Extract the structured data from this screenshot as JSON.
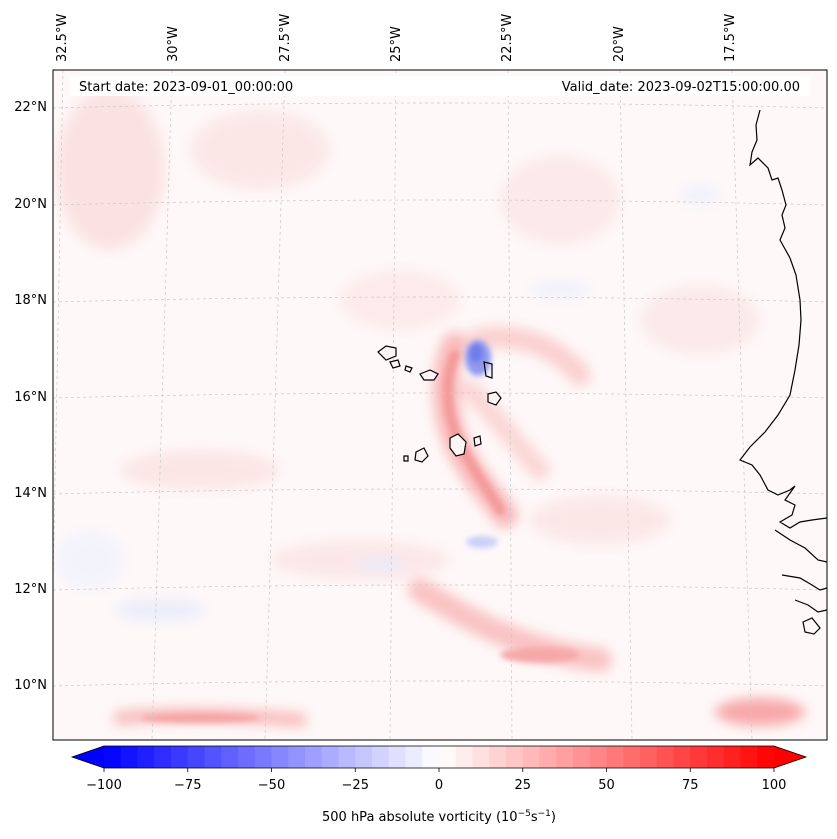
{
  "map": {
    "start_date_label": "Start date: 2023-09-01_00:00:00",
    "valid_date_label": "Valid_date: 2023-09-02T15:00:00.00",
    "lon_labels": [
      "32.5°W",
      "30°W",
      "27.5°W",
      "25°W",
      "22.5°W",
      "20°W",
      "17.5°W"
    ],
    "lat_labels": [
      "22°N",
      "20°N",
      "18°N",
      "16°N",
      "14°N",
      "12°N",
      "10°N"
    ],
    "variable": "500 hPa absolute vorticity",
    "region": "Cape Verde Islands and West African coast"
  },
  "colorbar": {
    "ticks": [
      "−100",
      "−75",
      "−50",
      "−25",
      "0",
      "25",
      "50",
      "75",
      "100"
    ],
    "min": -100,
    "max": 100,
    "step": 5,
    "label_main": "500 hPa absolute vorticity (10",
    "label_exp1": "−5",
    "label_mid": "s",
    "label_exp2": "−1",
    "label_end": ")",
    "color_negative": "#0000ff",
    "color_zero": "#ffffff",
    "color_positive": "#ff0000"
  }
}
